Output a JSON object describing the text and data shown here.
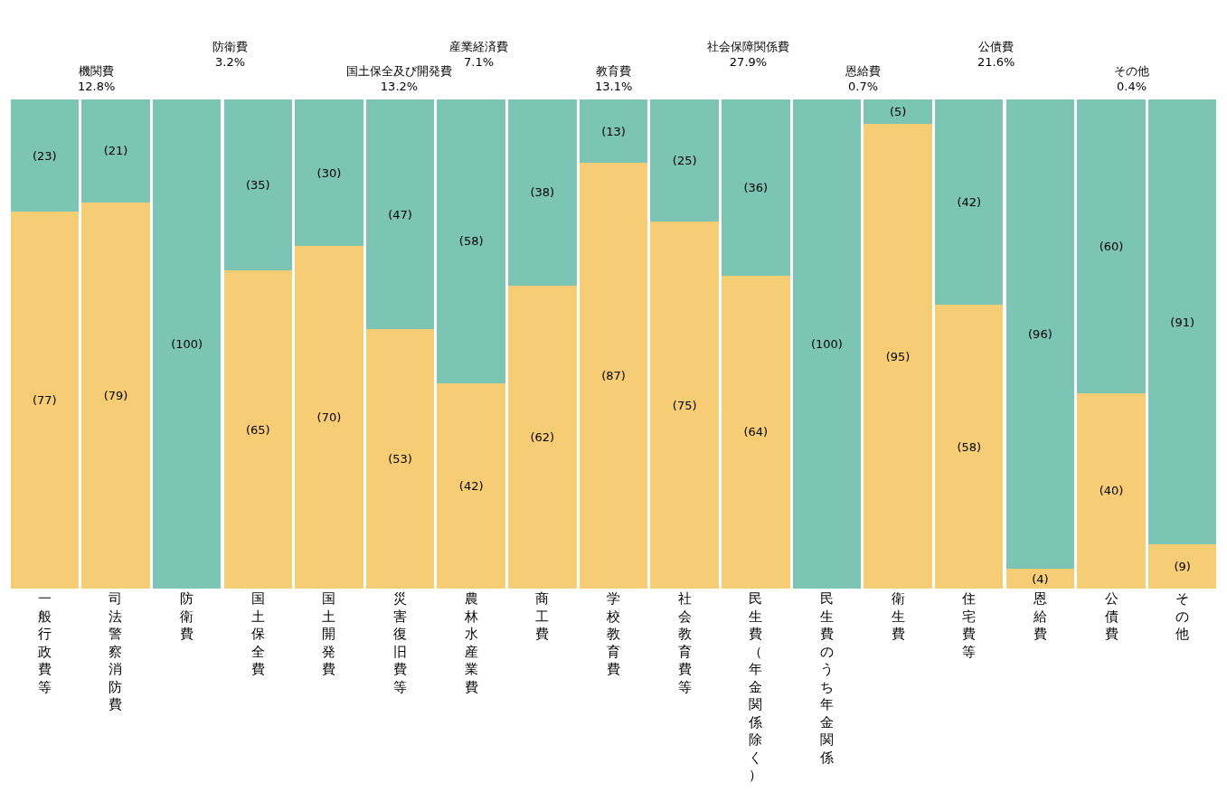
{
  "chart_data": {
    "type": "bar",
    "stacked": true,
    "tick_labels": "x",
    "categories": [
      "一般行政費等",
      "司法警察消防費",
      "防衛費",
      "国土保全費",
      "国土開発費",
      "災害復旧費等",
      "農林水産業費",
      "商工費",
      "学校教育費",
      "社会教育費等",
      "民生費（年金関係除く）",
      "民生費のうち年金関係",
      "衛生費",
      "住宅費等",
      "恩給費",
      "公債費",
      "その他"
    ],
    "series": [
      {
        "color": "#f6cd74",
        "values": [
          77,
          79,
          0,
          65,
          70,
          53,
          42,
          62,
          87,
          75,
          64,
          0,
          95,
          58,
          4,
          40,
          9
        ],
        "value_labels": [
          "(77)",
          "(79)",
          null,
          "(65)",
          "(70)",
          "(53)",
          "(42)",
          "(62)",
          "(87)",
          "(75)",
          "(64)",
          null,
          "(95)",
          "(58)",
          "(4)",
          "(40)",
          "(9)"
        ]
      },
      {
        "color": "#7cc4b4",
        "values": [
          23,
          21,
          100,
          35,
          30,
          47,
          58,
          38,
          13,
          25,
          36,
          100,
          5,
          42,
          96,
          60,
          91
        ],
        "value_labels": [
          "(23)",
          "(21)",
          "(100)",
          "(35)",
          "(30)",
          "(47)",
          "(58)",
          "(38)",
          "(13)",
          "(25)",
          "(36)",
          "(100)",
          "(5)",
          "(42)",
          "(96)",
          "(60)",
          "(91)"
        ]
      }
    ],
    "annotations": [
      "機関費\n12.8%",
      "防衛費\n3.2%",
      "国土保全及び開発費\n13.2%",
      "産業経済費\n7.1%",
      "教育費\n13.1%",
      "社会保障関係費\n27.9%",
      "恩給費\n0.7%",
      "公債費\n21.6%",
      "その他\n0.4%"
    ]
  }
}
